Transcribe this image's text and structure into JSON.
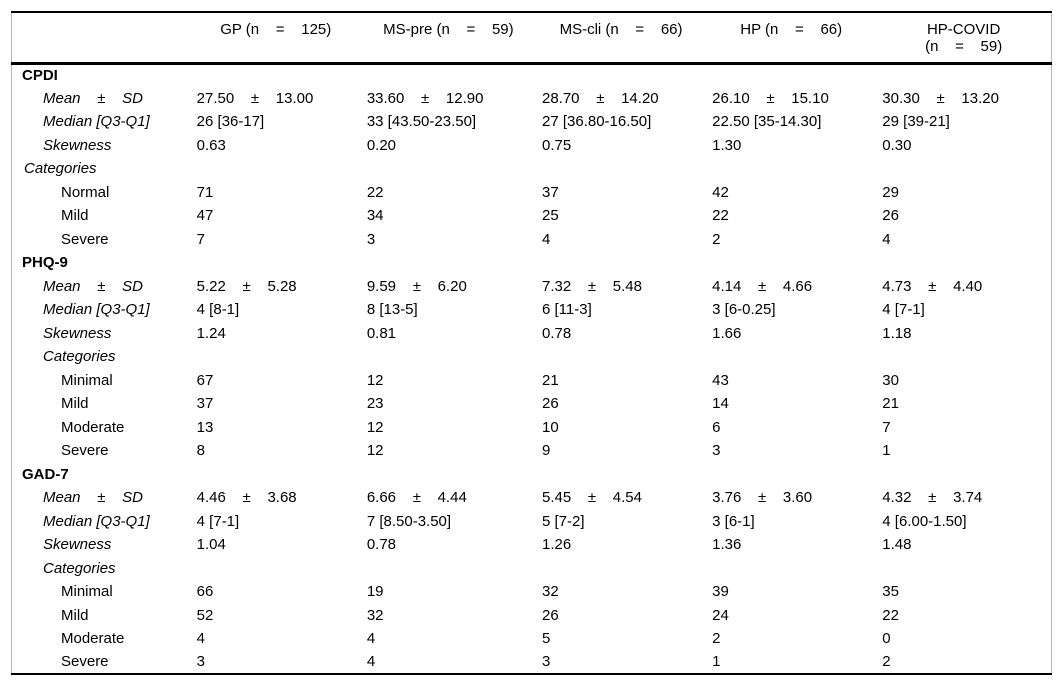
{
  "header": {
    "columns": [
      "GP (n    =    125)",
      "MS-pre (n    =    59)",
      "MS-cli (n    =    66)",
      "HP (n    =    66)",
      "HP-COVID\n(n    =    59)"
    ]
  },
  "sections": [
    {
      "name": "CPDI",
      "rows": [
        {
          "style": "stat",
          "label": "Mean    ±    SD",
          "cells": [
            "27.50    ±    13.00",
            "33.60    ±    12.90",
            "28.70    ±    14.20",
            "26.10    ±    15.10",
            "30.30    ±    13.20"
          ]
        },
        {
          "style": "stat",
          "label": "Median [Q3-Q1]",
          "cells": [
            "26 [36-17]",
            "33 [43.50-23.50]",
            "27 [36.80-16.50]",
            "22.50 [35-14.30]",
            "29 [39-21]"
          ]
        },
        {
          "style": "stat",
          "label": "Skewness",
          "cells": [
            "0.63",
            "0.20",
            "0.75",
            "1.30",
            "0.30"
          ]
        },
        {
          "style": "cat0",
          "label": "Categories",
          "cells": [
            "",
            "",
            "",
            "",
            ""
          ]
        },
        {
          "style": "item",
          "label": "Normal",
          "cells": [
            "71",
            "22",
            "37",
            "42",
            "29"
          ]
        },
        {
          "style": "item",
          "label": "Mild",
          "cells": [
            "47",
            "34",
            "25",
            "22",
            "26"
          ]
        },
        {
          "style": "item",
          "label": "Severe",
          "cells": [
            "7",
            "3",
            "4",
            "2",
            "4"
          ]
        }
      ]
    },
    {
      "name": "PHQ-9",
      "rows": [
        {
          "style": "stat",
          "label": "Mean    ±    SD",
          "cells": [
            "5.22    ±    5.28",
            "9.59    ±    6.20",
            "7.32    ±    5.48",
            "4.14    ±    4.66",
            "4.73    ±    4.40"
          ]
        },
        {
          "style": "stat",
          "label": "Median [Q3-Q1]",
          "cells": [
            "4 [8-1]",
            "8 [13-5]",
            "6 [11-3]",
            "3 [6-0.25]",
            "4 [7-1]"
          ]
        },
        {
          "style": "stat",
          "label": "Skewness",
          "cells": [
            "1.24",
            "0.81",
            "0.78",
            "1.66",
            "1.18"
          ]
        },
        {
          "style": "cat1",
          "label": "Categories",
          "cells": [
            "",
            "",
            "",
            "",
            ""
          ]
        },
        {
          "style": "item",
          "label": "Minimal",
          "cells": [
            "67",
            "12",
            "21",
            "43",
            "30"
          ]
        },
        {
          "style": "item",
          "label": "Mild",
          "cells": [
            "37",
            "23",
            "26",
            "14",
            "21"
          ]
        },
        {
          "style": "item",
          "label": "Moderate",
          "cells": [
            "13",
            "12",
            "10",
            "6",
            "7"
          ]
        },
        {
          "style": "item",
          "label": "Severe",
          "cells": [
            "8",
            "12",
            "9",
            "3",
            "1"
          ]
        }
      ]
    },
    {
      "name": "GAD-7",
      "rows": [
        {
          "style": "stat",
          "label": "Mean    ±    SD",
          "cells": [
            "4.46    ±    3.68",
            "6.66    ±    4.44",
            "5.45    ±    4.54",
            "3.76    ±    3.60",
            "4.32    ±    3.74"
          ]
        },
        {
          "style": "stat",
          "label": "Median [Q3-Q1]",
          "cells": [
            "4 [7-1]",
            "7 [8.50-3.50]",
            "5 [7-2]",
            "3 [6-1]",
            "4 [6.00-1.50]"
          ]
        },
        {
          "style": "stat",
          "label": "Skewness",
          "cells": [
            "1.04",
            "0.78",
            "1.26",
            "1.36",
            "1.48"
          ]
        },
        {
          "style": "cat1",
          "label": "Categories",
          "cells": [
            "",
            "",
            "",
            "",
            ""
          ]
        },
        {
          "style": "item",
          "label": "Minimal",
          "cells": [
            "66",
            "19",
            "32",
            "39",
            "35"
          ]
        },
        {
          "style": "item",
          "label": "Mild",
          "cells": [
            "52",
            "32",
            "26",
            "24",
            "22"
          ]
        },
        {
          "style": "item",
          "label": "Moderate",
          "cells": [
            "4",
            "4",
            "5",
            "2",
            "0"
          ]
        },
        {
          "style": "item",
          "label": "Severe",
          "cells": [
            "3",
            "4",
            "3",
            "1",
            "2"
          ]
        }
      ]
    }
  ],
  "colors": {
    "rule": "#000000",
    "frame_border": "#b9b9b9",
    "text": "#000000",
    "background": "#ffffff"
  }
}
